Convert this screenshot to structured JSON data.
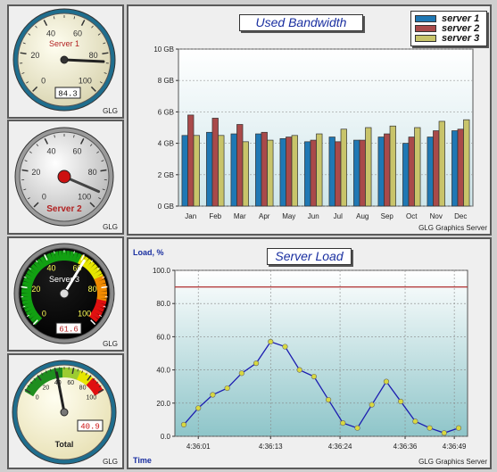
{
  "gauges": [
    {
      "label": "Server 1",
      "value": "84.3",
      "ticks": [
        "0",
        "20",
        "40",
        "60",
        "80",
        "100"
      ],
      "caption": "GLG"
    },
    {
      "label": "Server 2",
      "ticks": [
        "0",
        "20",
        "40",
        "60",
        "80",
        "100"
      ],
      "caption": "GLG"
    },
    {
      "label": "Server 3",
      "value": "61.6",
      "ticks": [
        "0",
        "20",
        "40",
        "60",
        "80",
        "100"
      ],
      "caption": "GLG"
    },
    {
      "label": "Total",
      "value": "40.9",
      "ticks": [
        "0",
        "20",
        "40",
        "60",
        "80",
        "100"
      ],
      "caption": "GLG"
    }
  ],
  "colors": {
    "server1": "#1f78b4",
    "server2": "#a94a4a",
    "server3": "#c8c46a",
    "line": "#1c1cb0",
    "threshold": "#b03030",
    "title": "#1a2fa0"
  },
  "chart_data": [
    {
      "type": "bar",
      "title": "Used Bandwidth",
      "categories": [
        "Jan",
        "Feb",
        "Mar",
        "Apr",
        "May",
        "Jun",
        "Jul",
        "Aug",
        "Sep",
        "Oct",
        "Nov",
        "Dec"
      ],
      "yticks": [
        "0 GB",
        "2 GB",
        "4 GB",
        "6 GB",
        "8 GB",
        "10 GB"
      ],
      "ylim": [
        0,
        10
      ],
      "series": [
        {
          "name": "server 1",
          "values": [
            4.5,
            4.7,
            4.6,
            4.6,
            4.3,
            4.1,
            4.4,
            4.2,
            4.4,
            4.0,
            4.4,
            4.8
          ]
        },
        {
          "name": "server 2",
          "values": [
            5.8,
            5.6,
            5.2,
            4.7,
            4.4,
            4.2,
            4.1,
            4.2,
            4.6,
            4.4,
            4.8,
            4.9
          ]
        },
        {
          "name": "server 3",
          "values": [
            4.5,
            4.5,
            4.1,
            4.2,
            4.5,
            4.6,
            4.9,
            5.0,
            5.1,
            5.0,
            5.4,
            5.5
          ]
        }
      ],
      "grid": true,
      "legend": "top-right",
      "credit": "GLG Graphics Server"
    },
    {
      "type": "line",
      "title": "Server Load",
      "ylabel": "Load, %",
      "xlabel": "Time",
      "yticks": [
        "0.0",
        "20.0",
        "40.0",
        "60.0",
        "80.0",
        "100.0"
      ],
      "ylim": [
        0,
        100
      ],
      "xticks": [
        "4:36:01",
        "4:36:13",
        "4:36:24",
        "4:36:36",
        "4:36:49"
      ],
      "threshold": 90,
      "values": [
        7,
        17,
        25,
        29,
        38,
        44,
        57,
        54,
        40,
        36,
        22,
        8,
        5,
        19,
        33,
        21,
        9,
        5,
        2,
        5
      ],
      "grid": true,
      "credit": "GLG Graphics Server"
    }
  ]
}
